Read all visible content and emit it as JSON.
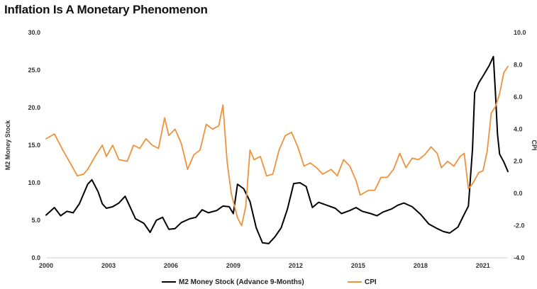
{
  "chart_data": {
    "type": "line",
    "title": "Inflation Is A Monetary Phenomenon",
    "xlabel": "",
    "ylabel_left": "M2 Money Stock",
    "ylabel_right": "CPI",
    "xlim": [
      2000,
      2022.2
    ],
    "ylim_left": [
      0,
      30
    ],
    "ylim_right": [
      -4,
      10
    ],
    "x_ticks": [
      2000,
      2003,
      2006,
      2009,
      2012,
      2015,
      2018,
      2021
    ],
    "y_ticks_left": [
      "0.0",
      "5.0",
      "10.0",
      "15.0",
      "20.0",
      "25.0",
      "30.0"
    ],
    "y_ticks_left_values": [
      0,
      5,
      10,
      15,
      20,
      25,
      30
    ],
    "y_ticks_right": [
      "-4.0",
      "-2.0",
      "0.0",
      "2.0",
      "4.0",
      "6.0",
      "8.0",
      "10.0"
    ],
    "y_ticks_right_values": [
      -4,
      -2,
      0,
      2,
      4,
      6,
      8,
      10
    ],
    "grid": false,
    "legend_position": "bottom",
    "series": [
      {
        "name": "M2 Money Stock (Advance 9-Months)",
        "axis": "left",
        "color": "#000000",
        "points": [
          [
            2000.0,
            5.7
          ],
          [
            2000.4,
            6.7
          ],
          [
            2000.7,
            5.6
          ],
          [
            2001.0,
            6.2
          ],
          [
            2001.3,
            6.0
          ],
          [
            2001.6,
            7.2
          ],
          [
            2002.0,
            9.8
          ],
          [
            2002.2,
            10.4
          ],
          [
            2002.5,
            8.8
          ],
          [
            2002.7,
            7.2
          ],
          [
            2002.9,
            6.6
          ],
          [
            2003.2,
            6.8
          ],
          [
            2003.5,
            7.3
          ],
          [
            2003.8,
            8.2
          ],
          [
            2004.0,
            7.0
          ],
          [
            2004.3,
            5.2
          ],
          [
            2004.7,
            4.6
          ],
          [
            2005.0,
            3.4
          ],
          [
            2005.3,
            5.0
          ],
          [
            2005.6,
            5.4
          ],
          [
            2005.9,
            3.8
          ],
          [
            2006.2,
            3.9
          ],
          [
            2006.5,
            4.7
          ],
          [
            2006.9,
            5.2
          ],
          [
            2007.2,
            5.4
          ],
          [
            2007.5,
            6.4
          ],
          [
            2007.8,
            6.0
          ],
          [
            2008.2,
            6.3
          ],
          [
            2008.5,
            6.9
          ],
          [
            2008.8,
            6.8
          ],
          [
            2009.0,
            5.9
          ],
          [
            2009.2,
            9.8
          ],
          [
            2009.5,
            9.2
          ],
          [
            2009.8,
            7.5
          ],
          [
            2010.1,
            4.0
          ],
          [
            2010.4,
            2.0
          ],
          [
            2010.7,
            1.9
          ],
          [
            2011.0,
            2.8
          ],
          [
            2011.3,
            4.0
          ],
          [
            2011.6,
            6.5
          ],
          [
            2011.9,
            9.9
          ],
          [
            2012.2,
            10.0
          ],
          [
            2012.5,
            9.5
          ],
          [
            2012.8,
            6.7
          ],
          [
            2013.1,
            7.4
          ],
          [
            2013.5,
            7.0
          ],
          [
            2013.9,
            6.6
          ],
          [
            2014.2,
            5.9
          ],
          [
            2014.6,
            6.3
          ],
          [
            2014.9,
            6.7
          ],
          [
            2015.2,
            6.2
          ],
          [
            2015.6,
            5.9
          ],
          [
            2015.9,
            5.6
          ],
          [
            2016.2,
            6.1
          ],
          [
            2016.6,
            6.5
          ],
          [
            2016.9,
            7.0
          ],
          [
            2017.2,
            7.3
          ],
          [
            2017.6,
            6.8
          ],
          [
            2018.0,
            5.8
          ],
          [
            2018.4,
            4.5
          ],
          [
            2018.8,
            3.9
          ],
          [
            2019.1,
            3.5
          ],
          [
            2019.4,
            3.3
          ],
          [
            2019.8,
            4.1
          ],
          [
            2020.1,
            5.8
          ],
          [
            2020.3,
            6.9
          ],
          [
            2020.5,
            14.5
          ],
          [
            2020.6,
            22.0
          ],
          [
            2020.8,
            23.3
          ],
          [
            2021.0,
            24.2
          ],
          [
            2021.3,
            25.6
          ],
          [
            2021.5,
            26.8
          ],
          [
            2021.6,
            22.0
          ],
          [
            2021.7,
            16.5
          ],
          [
            2021.8,
            13.8
          ],
          [
            2022.0,
            12.8
          ],
          [
            2022.2,
            11.5
          ]
        ]
      },
      {
        "name": "CPI",
        "axis": "right",
        "color": "#f0913c",
        "points": [
          [
            2000.0,
            3.4
          ],
          [
            2000.4,
            3.7
          ],
          [
            2000.8,
            2.7
          ],
          [
            2001.2,
            1.8
          ],
          [
            2001.5,
            1.1
          ],
          [
            2001.8,
            1.2
          ],
          [
            2002.0,
            1.5
          ],
          [
            2002.4,
            2.4
          ],
          [
            2002.7,
            3.0
          ],
          [
            2002.9,
            2.3
          ],
          [
            2003.2,
            3.0
          ],
          [
            2003.5,
            2.1
          ],
          [
            2003.9,
            2.0
          ],
          [
            2004.2,
            3.0
          ],
          [
            2004.5,
            2.8
          ],
          [
            2004.8,
            3.4
          ],
          [
            2005.1,
            3.0
          ],
          [
            2005.4,
            2.8
          ],
          [
            2005.7,
            4.7
          ],
          [
            2005.9,
            3.6
          ],
          [
            2006.2,
            4.0
          ],
          [
            2006.5,
            3.1
          ],
          [
            2006.8,
            1.5
          ],
          [
            2007.1,
            2.4
          ],
          [
            2007.4,
            2.7
          ],
          [
            2007.7,
            4.3
          ],
          [
            2008.0,
            4.0
          ],
          [
            2008.3,
            4.2
          ],
          [
            2008.5,
            5.5
          ],
          [
            2008.7,
            2.0
          ],
          [
            2008.9,
            0.0
          ],
          [
            2009.2,
            -1.5
          ],
          [
            2009.4,
            -2.0
          ],
          [
            2009.6,
            -0.8
          ],
          [
            2009.8,
            2.7
          ],
          [
            2010.0,
            2.1
          ],
          [
            2010.3,
            2.3
          ],
          [
            2010.6,
            1.1
          ],
          [
            2010.9,
            1.2
          ],
          [
            2011.2,
            2.7
          ],
          [
            2011.5,
            3.6
          ],
          [
            2011.8,
            3.8
          ],
          [
            2012.1,
            2.9
          ],
          [
            2012.4,
            1.7
          ],
          [
            2012.7,
            1.9
          ],
          [
            2013.0,
            1.6
          ],
          [
            2013.3,
            1.2
          ],
          [
            2013.7,
            1.5
          ],
          [
            2014.0,
            1.1
          ],
          [
            2014.3,
            2.1
          ],
          [
            2014.6,
            1.7
          ],
          [
            2014.9,
            0.8
          ],
          [
            2015.1,
            -0.1
          ],
          [
            2015.5,
            0.2
          ],
          [
            2015.8,
            0.2
          ],
          [
            2016.1,
            1.0
          ],
          [
            2016.4,
            1.0
          ],
          [
            2016.7,
            1.5
          ],
          [
            2017.0,
            2.5
          ],
          [
            2017.3,
            1.6
          ],
          [
            2017.6,
            2.2
          ],
          [
            2017.9,
            2.1
          ],
          [
            2018.2,
            2.4
          ],
          [
            2018.5,
            2.9
          ],
          [
            2018.8,
            2.5
          ],
          [
            2019.0,
            1.6
          ],
          [
            2019.3,
            2.0
          ],
          [
            2019.6,
            1.7
          ],
          [
            2019.9,
            2.3
          ],
          [
            2020.1,
            2.5
          ],
          [
            2020.3,
            0.3
          ],
          [
            2020.5,
            0.6
          ],
          [
            2020.8,
            1.3
          ],
          [
            2021.0,
            1.4
          ],
          [
            2021.2,
            2.6
          ],
          [
            2021.4,
            5.0
          ],
          [
            2021.6,
            5.4
          ],
          [
            2021.8,
            6.2
          ],
          [
            2022.0,
            7.5
          ],
          [
            2022.2,
            7.9
          ]
        ]
      }
    ]
  }
}
